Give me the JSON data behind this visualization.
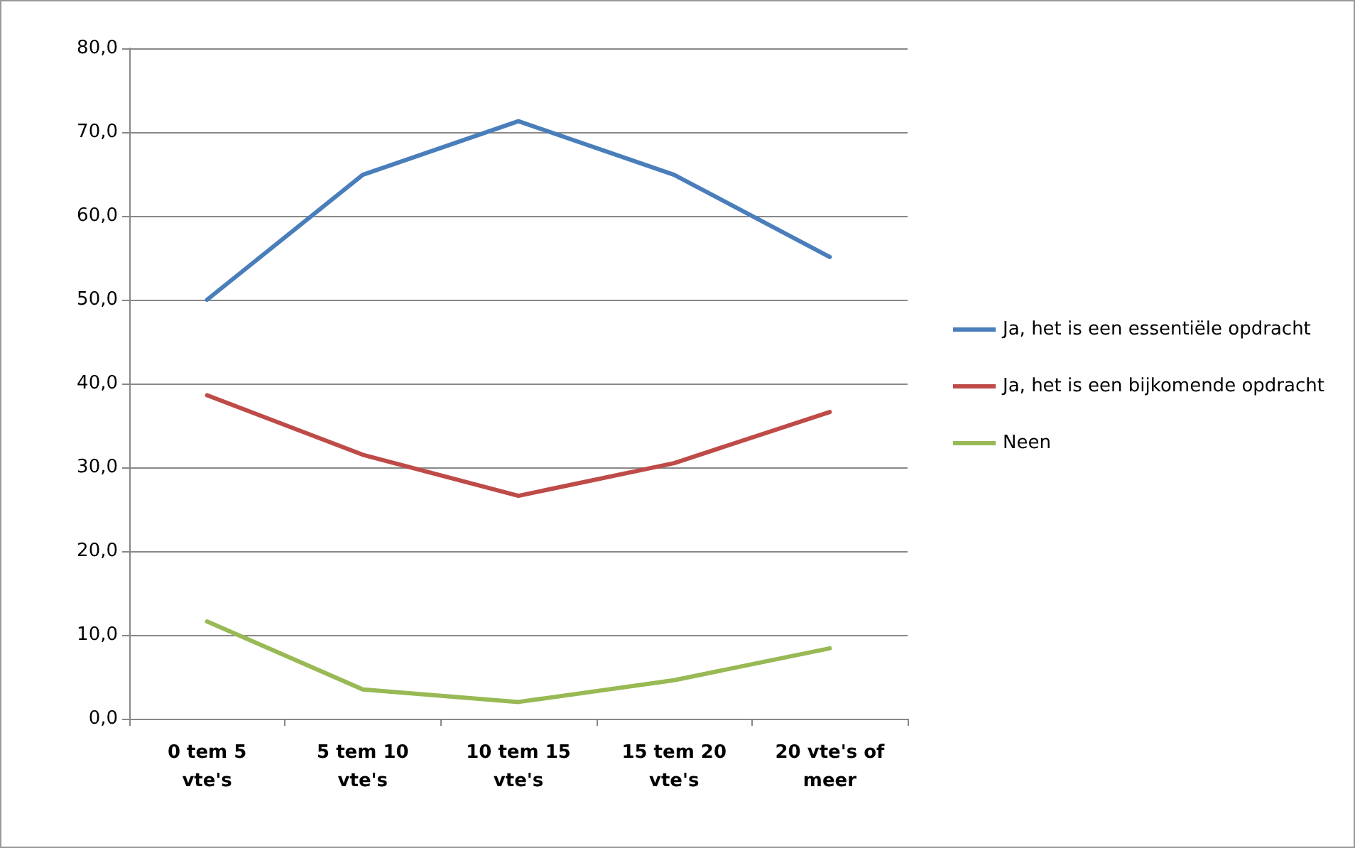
{
  "chart_data": {
    "type": "line",
    "categories": [
      "0 tem 5\nvte's",
      "5 tem 10\nvte's",
      "10 tem 15\nvte's",
      "15 tem 20\nvte's",
      "20 vte's of\nmeer"
    ],
    "series": [
      {
        "name": "Ja, het is een essentiële opdracht",
        "color": "#4a7ebb",
        "values": [
          50.0,
          64.9,
          71.3,
          64.9,
          55.1
        ]
      },
      {
        "name": "Ja, het is een bijkomende opdracht",
        "color": "#be4b48",
        "values": [
          38.6,
          31.5,
          26.6,
          30.5,
          36.6
        ]
      },
      {
        "name": "Neen",
        "color": "#98b954",
        "values": [
          11.6,
          3.5,
          2.0,
          4.6,
          8.4
        ]
      }
    ],
    "ylim": [
      0,
      80
    ],
    "yticks": [
      {
        "value": 0,
        "label": "0,0"
      },
      {
        "value": 10,
        "label": "10,0"
      },
      {
        "value": 20,
        "label": "20,0"
      },
      {
        "value": 30,
        "label": "30,0"
      },
      {
        "value": 40,
        "label": "40,0"
      },
      {
        "value": 50,
        "label": "50,0"
      },
      {
        "value": 60,
        "label": "60,0"
      },
      {
        "value": 70,
        "label": "70,0"
      },
      {
        "value": 80,
        "label": "80,0"
      }
    ],
    "grid": "y",
    "legend": "right",
    "marker": "none",
    "line_style": "solid"
  }
}
